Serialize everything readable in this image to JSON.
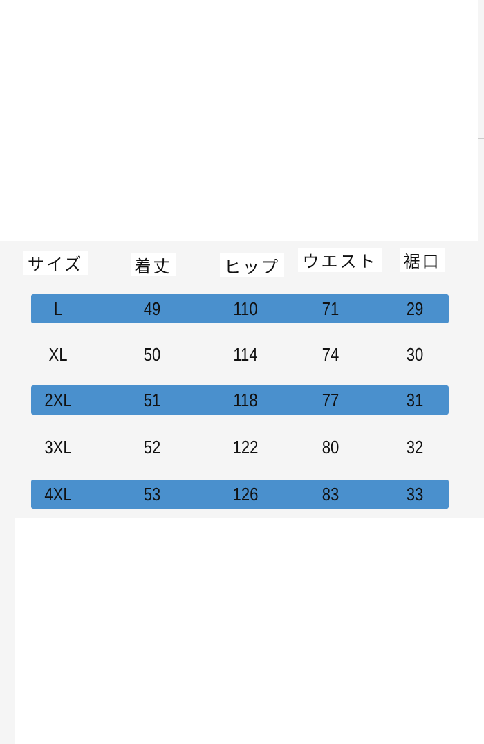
{
  "headers": [
    "サイズ",
    "着丈",
    "ヒップ",
    "ウエスト",
    "裾口"
  ],
  "rows": [
    {
      "size": "L",
      "length": "49",
      "hip": "110",
      "waist": "71",
      "hem": "29",
      "highlighted": true
    },
    {
      "size": "XL",
      "length": "50",
      "hip": "114",
      "waist": "74",
      "hem": "30",
      "highlighted": false
    },
    {
      "size": "2XL",
      "length": "51",
      "hip": "118",
      "waist": "77",
      "hem": "31",
      "highlighted": true
    },
    {
      "size": "3XL",
      "length": "52",
      "hip": "122",
      "waist": "80",
      "hem": "32",
      "highlighted": false
    },
    {
      "size": "4XL",
      "length": "53",
      "hip": "126",
      "waist": "83",
      "hem": "33",
      "highlighted": true
    }
  ],
  "colors": {
    "highlight_bar": "#4a90cd",
    "background": "#f5f5f5"
  }
}
